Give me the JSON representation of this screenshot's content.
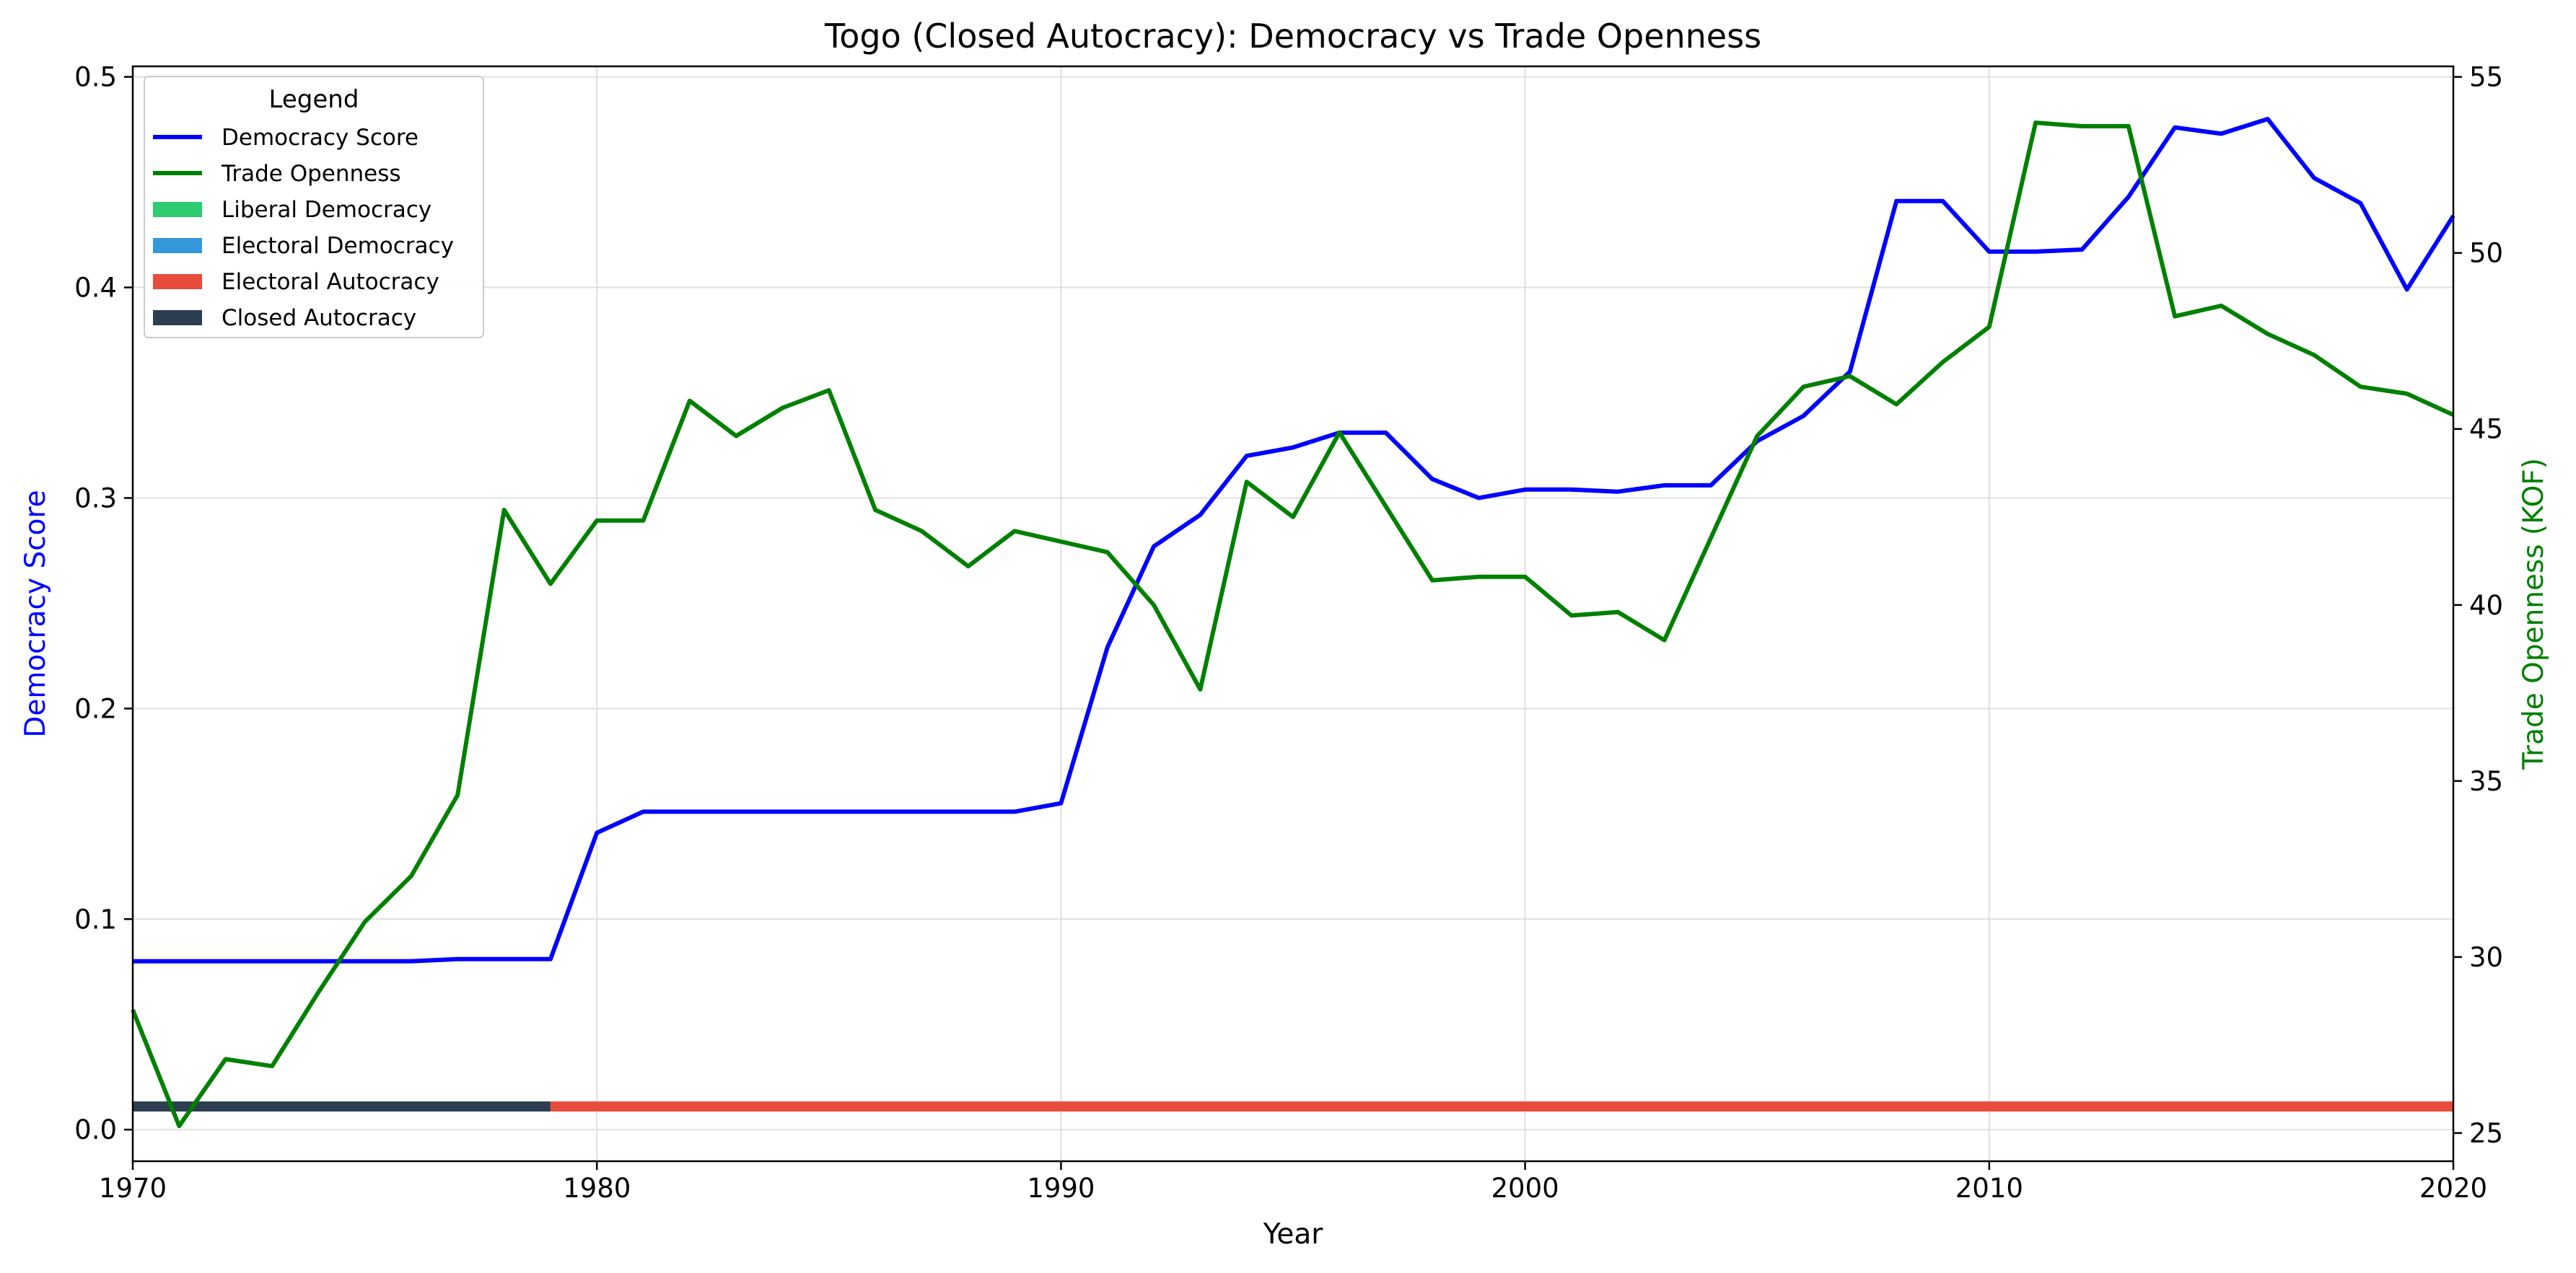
{
  "chart_data": {
    "type": "line",
    "title": "Togo (Closed Autocracy): Democracy vs Trade Openness",
    "xlabel": "Year",
    "ylabel_left": "Democracy Score",
    "ylabel_right": "Trade Openness (KOF)",
    "xlim": [
      1970,
      2020
    ],
    "ylim_left": [
      -0.015,
      0.505
    ],
    "ylim_right": [
      24.2,
      55.3
    ],
    "x_ticks": [
      "1970",
      "1980",
      "1990",
      "2000",
      "2010",
      "2020"
    ],
    "y_left_ticks": [
      "0.0",
      "0.1",
      "0.2",
      "0.3",
      "0.4",
      "0.5"
    ],
    "y_right_ticks": [
      "25",
      "30",
      "35",
      "40",
      "45",
      "50",
      "55"
    ],
    "grid": true,
    "legend": {
      "title": "Legend",
      "placement": "top-left",
      "entries": [
        {
          "label": "Democracy Score",
          "kind": "line",
          "color": "#0000ff"
        },
        {
          "label": "Trade Openness",
          "kind": "line",
          "color": "#008000"
        },
        {
          "label": "Liberal Democracy",
          "kind": "patch",
          "color": "#2ecc71"
        },
        {
          "label": "Electoral Democracy",
          "kind": "patch",
          "color": "#3498db"
        },
        {
          "label": "Electoral Autocracy",
          "kind": "patch",
          "color": "#e74c3c"
        },
        {
          "label": "Closed Autocracy",
          "kind": "patch",
          "color": "#2c3e50"
        }
      ]
    },
    "series": [
      {
        "name": "Democracy Score",
        "axis": "left",
        "color": "#0000ff",
        "x": [
          1970,
          1971,
          1972,
          1973,
          1974,
          1975,
          1976,
          1977,
          1978,
          1979,
          1980,
          1981,
          1982,
          1983,
          1984,
          1985,
          1986,
          1987,
          1988,
          1989,
          1990,
          1991,
          1992,
          1993,
          1994,
          1995,
          1996,
          1997,
          1998,
          1999,
          2000,
          2001,
          2002,
          2003,
          2004,
          2005,
          2006,
          2007,
          2008,
          2009,
          2010,
          2011,
          2012,
          2013,
          2014,
          2015,
          2016,
          2017,
          2018,
          2019,
          2020
        ],
        "values": [
          0.08,
          0.08,
          0.08,
          0.08,
          0.08,
          0.08,
          0.08,
          0.081,
          0.081,
          0.081,
          0.141,
          0.151,
          0.151,
          0.151,
          0.151,
          0.151,
          0.151,
          0.151,
          0.151,
          0.151,
          0.155,
          0.229,
          0.277,
          0.292,
          0.32,
          0.324,
          0.331,
          0.331,
          0.309,
          0.3,
          0.304,
          0.304,
          0.303,
          0.306,
          0.306,
          0.327,
          0.339,
          0.36,
          0.441,
          0.441,
          0.417,
          0.417,
          0.418,
          0.443,
          0.476,
          0.473,
          0.48,
          0.452,
          0.44,
          0.399,
          0.434
        ]
      },
      {
        "name": "Trade Openness",
        "axis": "right",
        "color": "#008000",
        "x": [
          1970,
          1971,
          1972,
          1973,
          1974,
          1975,
          1976,
          1977,
          1978,
          1979,
          1980,
          1981,
          1982,
          1983,
          1984,
          1985,
          1986,
          1987,
          1988,
          1989,
          1990,
          1991,
          1992,
          1993,
          1994,
          1995,
          1996,
          1997,
          1998,
          1999,
          2000,
          2001,
          2002,
          2003,
          2004,
          2005,
          2006,
          2007,
          2008,
          2009,
          2010,
          2011,
          2012,
          2013,
          2014,
          2015,
          2016,
          2017,
          2018,
          2019,
          2020
        ],
        "values": [
          28.5,
          25.2,
          27.1,
          26.9,
          29.0,
          31.0,
          32.3,
          34.6,
          42.7,
          40.6,
          42.4,
          42.4,
          45.8,
          44.8,
          45.6,
          46.1,
          42.7,
          42.1,
          41.1,
          42.1,
          41.8,
          41.5,
          40.0,
          37.6,
          43.5,
          42.5,
          44.9,
          42.8,
          40.7,
          40.8,
          40.8,
          39.7,
          39.8,
          39.0,
          41.9,
          44.8,
          46.2,
          46.5,
          45.7,
          46.9,
          47.9,
          53.7,
          53.6,
          53.6,
          48.2,
          48.5,
          47.7,
          47.1,
          46.2,
          46.0,
          45.4
        ]
      }
    ],
    "regime_band": {
      "axis": "left",
      "value": 0.011,
      "segments": [
        {
          "label": "Closed Autocracy",
          "from": 1970,
          "to": 1979,
          "color": "#2c3e50"
        },
        {
          "label": "Electoral Autocracy",
          "from": 1979,
          "to": 2020,
          "color": "#e74c3c"
        }
      ]
    },
    "colors": {
      "left_axis_label": "#0000ff",
      "right_axis_label": "#008000",
      "grid": "#e0e0e0"
    }
  }
}
